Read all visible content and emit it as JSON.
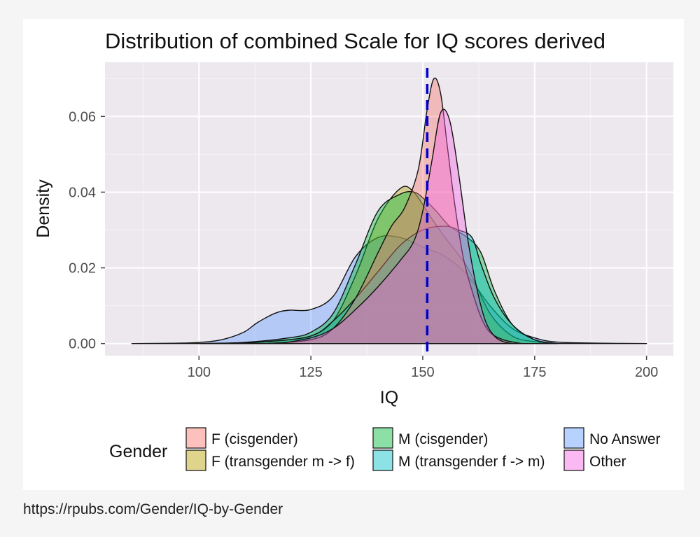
{
  "source_url": "https://rpubs.com/Gender/IQ-by-Gender",
  "chart_data": {
    "type": "area",
    "title": "Distribution of combined Scale for IQ scores derived",
    "xlabel": "IQ",
    "ylabel": "Density",
    "xlim": [
      79,
      206
    ],
    "ylim": [
      -0.0032,
      0.0743
    ],
    "x_ticks": [
      100,
      125,
      150,
      175,
      200
    ],
    "x_tick_labels": [
      "100",
      "125",
      "150",
      "175",
      "200"
    ],
    "y_ticks": [
      0.0,
      0.02,
      0.04,
      0.06
    ],
    "y_tick_labels": [
      "0.00",
      "0.02",
      "0.04",
      "0.06"
    ],
    "grid": true,
    "background": "#ece8ee",
    "reference_line": {
      "x": 151,
      "style": "dashed",
      "color": "#0000cc"
    },
    "legend": {
      "title": "Gender",
      "position": "bottom",
      "columns": 3,
      "items": [
        {
          "label": "F (cisgender)",
          "color": "#F8766D"
        },
        {
          "label": "F (transgender m -> f)",
          "color": "#B79F00"
        },
        {
          "label": "M (cisgender)",
          "color": "#00BA38"
        },
        {
          "label": "M (transgender f -> m)",
          "color": "#00BFC4"
        },
        {
          "label": "No Answer",
          "color": "#619CFF"
        },
        {
          "label": "Other",
          "color": "#F564E3"
        }
      ]
    },
    "series": [
      {
        "name": "No Answer",
        "color": "#619CFF",
        "x": [
          85,
          95,
          100,
          105,
          110,
          113,
          117,
          120,
          125,
          130,
          135,
          140,
          145,
          150,
          155,
          160,
          165,
          170,
          175,
          180,
          190,
          200
        ],
        "y": [
          0,
          0.0001,
          0.0003,
          0.001,
          0.003,
          0.0055,
          0.008,
          0.0088,
          0.009,
          0.0125,
          0.023,
          0.028,
          0.028,
          0.0255,
          0.023,
          0.018,
          0.01,
          0.004,
          0.0015,
          0.0004,
          0.0001,
          0
        ]
      },
      {
        "name": "F (transgender m -> f)",
        "color": "#B79F00",
        "x": [
          100,
          110,
          120,
          125,
          130,
          135,
          140,
          145,
          148,
          152,
          155,
          160,
          165,
          170,
          175,
          180
        ],
        "y": [
          0,
          0.0002,
          0.001,
          0.002,
          0.006,
          0.018,
          0.033,
          0.041,
          0.04,
          0.033,
          0.028,
          0.02,
          0.008,
          0.002,
          0.0005,
          0
        ]
      },
      {
        "name": "M (cisgender)",
        "color": "#00BA38",
        "x": [
          100,
          110,
          120,
          125,
          130,
          135,
          140,
          145,
          148,
          150,
          153,
          156,
          160,
          163,
          166,
          170,
          175,
          180
        ],
        "y": [
          0,
          0.0003,
          0.0015,
          0.003,
          0.008,
          0.021,
          0.035,
          0.0395,
          0.04,
          0.0385,
          0.035,
          0.031,
          0.028,
          0.024,
          0.014,
          0.005,
          0.001,
          0
        ]
      },
      {
        "name": "M (transgender f -> m)",
        "color": "#00BFC4",
        "x": [
          105,
          115,
          125,
          130,
          135,
          140,
          145,
          150,
          155,
          158,
          161,
          163,
          166,
          170,
          175,
          180
        ],
        "y": [
          0,
          0.0005,
          0.002,
          0.006,
          0.012,
          0.019,
          0.026,
          0.03,
          0.031,
          0.03,
          0.028,
          0.021,
          0.012,
          0.005,
          0.001,
          0
        ]
      },
      {
        "name": "F (cisgender)",
        "color": "#F8766D",
        "x": [
          115,
          125,
          130,
          135,
          140,
          143,
          146,
          149,
          151,
          152.5,
          154,
          155.5,
          157,
          159,
          161,
          163,
          165,
          168,
          172
        ],
        "y": [
          0,
          0.001,
          0.004,
          0.012,
          0.024,
          0.031,
          0.036,
          0.046,
          0.062,
          0.07,
          0.066,
          0.052,
          0.038,
          0.023,
          0.014,
          0.007,
          0.003,
          0.001,
          0
        ]
      },
      {
        "name": "Other",
        "color": "#F564E3",
        "x": [
          118,
          125,
          130,
          135,
          140,
          145,
          148,
          150,
          152,
          154,
          156,
          158,
          160,
          162,
          164,
          166,
          168,
          170
        ],
        "y": [
          0,
          0.0015,
          0.004,
          0.009,
          0.015,
          0.022,
          0.027,
          0.035,
          0.048,
          0.061,
          0.059,
          0.045,
          0.028,
          0.015,
          0.006,
          0.002,
          0.0005,
          0
        ]
      }
    ]
  }
}
